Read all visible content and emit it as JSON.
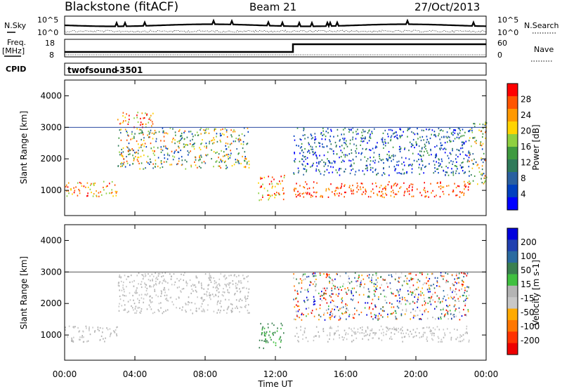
{
  "header": {
    "station": "Blackstone (fitACF)",
    "beam": "Beam 21",
    "date": "27/Oct/2013"
  },
  "top_panels": {
    "noise": {
      "left_label": "N.Sky",
      "right_label": "N.Search",
      "left_ticks": [
        "10^5",
        "10^0"
      ],
      "right_ticks": [
        "10^5",
        "10^0"
      ]
    },
    "freq": {
      "left_label_line1": "Freq.",
      "left_label_line2": "[MHz]",
      "right_label": "Nave",
      "left_ticks": [
        "18",
        "8"
      ],
      "right_ticks": [
        "60",
        "0"
      ]
    },
    "cpid": {
      "label": "CPID",
      "program": "twofsound",
      "id": "-3501"
    }
  },
  "colors": {
    "power_scale": [
      "#0000ff",
      "#0040c0",
      "#2a60a0",
      "#2f7a5a",
      "#3f9a3f",
      "#8fd040",
      "#ffd400",
      "#ff9900",
      "#ff5500",
      "#ff0000"
    ],
    "velocity_scale": [
      "#0000dd",
      "#2040b0",
      "#2a6aa0",
      "#3a8050",
      "#40c040",
      "#b4b4b4",
      "#c8c8c8",
      "#ffaa00",
      "#ff7700",
      "#ff3300",
      "#ee0000"
    ]
  },
  "chart_data": [
    {
      "type": "heatmap",
      "name_hint": "power",
      "ylabel": "Slant Range [km]",
      "y_ticks": [
        "1000",
        "2000",
        "3000",
        "4000"
      ],
      "ylim": [
        200,
        4500
      ],
      "xlim": [
        "00:00",
        "24:00"
      ],
      "colorbar": {
        "label": "Power [dB]",
        "ticks": [
          "28",
          "24",
          "20",
          "16",
          "12",
          "8",
          "4"
        ],
        "range": [
          0,
          32
        ]
      },
      "bands": [
        {
          "from": "00:00",
          "to": "03:00",
          "range_km": [
            800,
            1300
          ],
          "level": "high"
        },
        {
          "from": "03:00",
          "to": "10:30",
          "range_km": [
            1700,
            3000
          ],
          "level": "mixed"
        },
        {
          "from": "03:00",
          "to": "05:00",
          "range_km": [
            3000,
            3500
          ],
          "level": "high"
        },
        {
          "from": "11:00",
          "to": "12:30",
          "range_km": [
            700,
            1500
          ],
          "level": "high"
        },
        {
          "from": "13:00",
          "to": "23:00",
          "range_km": [
            800,
            1300
          ],
          "level": "very high"
        },
        {
          "from": "13:00",
          "to": "23:00",
          "range_km": [
            1500,
            3000
          ],
          "level": "low"
        },
        {
          "from": "23:00",
          "to": "24:00",
          "range_km": [
            1200,
            3200
          ],
          "level": "mixed"
        }
      ]
    },
    {
      "type": "heatmap",
      "name_hint": "velocity",
      "ylabel": "Slant Range [km]",
      "xlabel": "Time UT",
      "x_ticks": [
        "00:00",
        "04:00",
        "08:00",
        "12:00",
        "16:00",
        "20:00",
        "00:00"
      ],
      "y_ticks": [
        "1000",
        "2000",
        "3000",
        "4000"
      ],
      "ylim": [
        200,
        4500
      ],
      "xlim": [
        "00:00",
        "24:00"
      ],
      "colorbar": {
        "label": "Velocity [m s-1]",
        "ticks": [
          "200",
          "100",
          "50",
          "15",
          "-15",
          "-50",
          "-100",
          "-200"
        ],
        "range": [
          -250,
          250
        ]
      },
      "bands": [
        {
          "from": "00:00",
          "to": "03:00",
          "range_km": [
            800,
            1300
          ],
          "level": "near zero"
        },
        {
          "from": "03:00",
          "to": "10:30",
          "range_km": [
            1700,
            3000
          ],
          "level": "near zero"
        },
        {
          "from": "11:00",
          "to": "12:30",
          "range_km": [
            600,
            1400
          ],
          "level": "positive"
        },
        {
          "from": "13:00",
          "to": "23:00",
          "range_km": [
            800,
            1300
          ],
          "level": "near zero"
        },
        {
          "from": "13:00",
          "to": "23:00",
          "range_km": [
            1500,
            3000
          ],
          "level": "mixed"
        }
      ]
    }
  ]
}
